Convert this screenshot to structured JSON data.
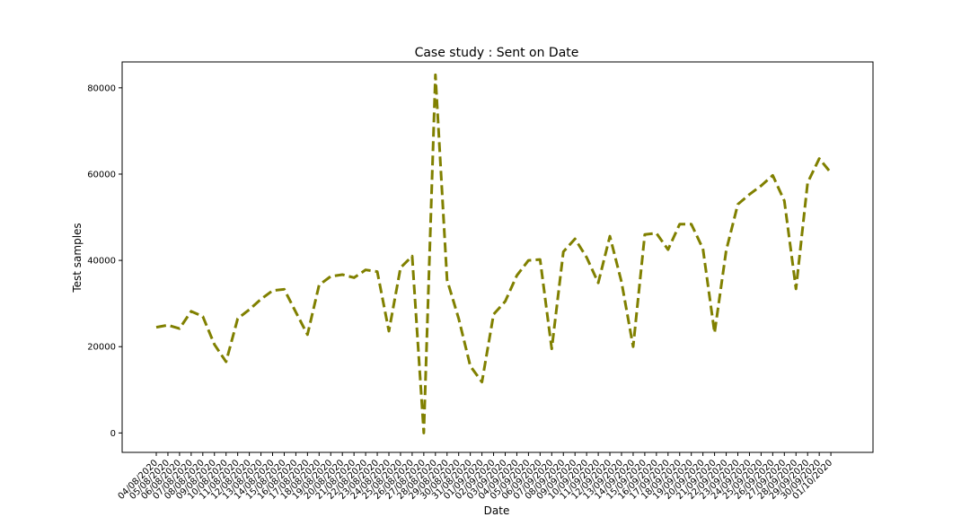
{
  "chart_data": {
    "type": "line",
    "title": "Case study : Sent on Date",
    "xlabel": "Date",
    "ylabel": "Test samples",
    "ylim": [
      -4500,
      86000
    ],
    "yticks": [
      0,
      20000,
      40000,
      60000,
      80000
    ],
    "grid": false,
    "legend": "none",
    "line_color": "#808000",
    "line_style": "dashed",
    "x": [
      "04/08/2020",
      "05/08/2020",
      "06/08/2020",
      "07/08/2020",
      "08/08/2020",
      "09/08/2020",
      "10/08/2020",
      "11/08/2020",
      "12/08/2020",
      "13/08/2020",
      "14/08/2020",
      "15/08/2020",
      "16/08/2020",
      "17/08/2020",
      "18/08/2020",
      "19/08/2020",
      "20/08/2020",
      "21/08/2020",
      "22/08/2020",
      "23/08/2020",
      "24/08/2020",
      "25/08/2020",
      "26/08/2020",
      "27/08/2020",
      "28/08/2020",
      "29/08/2020",
      "30/08/2020",
      "31/08/2020",
      "01/09/2020",
      "02/09/2020",
      "03/09/2020",
      "04/09/2020",
      "05/09/2020",
      "06/09/2020",
      "07/09/2020",
      "08/09/2020",
      "09/09/2020",
      "10/09/2020",
      "11/09/2020",
      "12/09/2020",
      "13/09/2020",
      "14/09/2020",
      "15/09/2020",
      "16/09/2020",
      "17/09/2020",
      "18/09/2020",
      "19/09/2020",
      "20/09/2020",
      "21/09/2020",
      "22/09/2020",
      "23/09/2020",
      "24/09/2020",
      "25/09/2020",
      "26/09/2020",
      "27/09/2020",
      "28/09/2020",
      "29/09/2020",
      "30/09/2020",
      "01/10/2020"
    ],
    "series": [
      {
        "name": "",
        "values": [
          24500,
          25000,
          24200,
          28200,
          27000,
          20500,
          16500,
          26500,
          28600,
          31000,
          33000,
          33300,
          28000,
          22800,
          34300,
          36300,
          36700,
          36000,
          37800,
          37400,
          23600,
          38300,
          41000,
          0,
          83000,
          35500,
          26500,
          15500,
          11800,
          27500,
          30500,
          36500,
          40000,
          40200,
          19500,
          42000,
          45000,
          40700,
          34800,
          45600,
          35000,
          20000,
          46000,
          46300,
          42500,
          48400,
          48400,
          42700,
          23200,
          42300,
          53000,
          55300,
          57300,
          59700,
          53800,
          33400,
          58000,
          63600,
          60300
        ]
      }
    ]
  }
}
